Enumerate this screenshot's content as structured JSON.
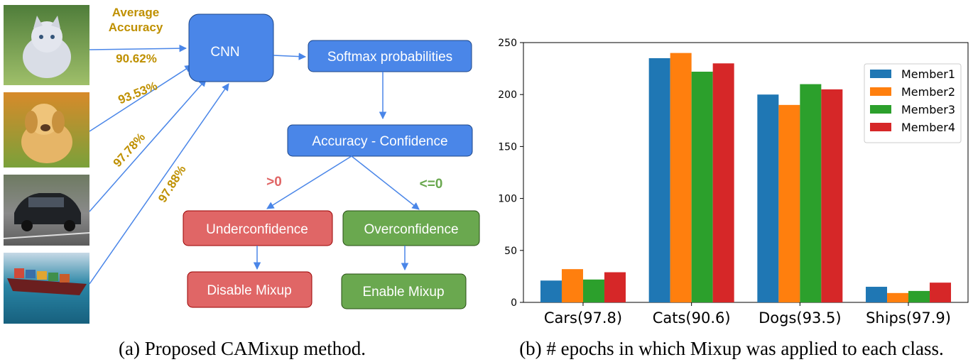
{
  "diagram": {
    "average_accuracy_label": "Average\nAccuracy",
    "images": [
      {
        "name": "kitten",
        "accuracy": "90.62%"
      },
      {
        "name": "puppy",
        "accuracy": "93.53%"
      },
      {
        "name": "car",
        "accuracy": "97.78%"
      },
      {
        "name": "ship",
        "accuracy": "97.88%"
      }
    ],
    "nodes": {
      "cnn": "CNN",
      "softmax": "Softmax probabilities",
      "acc_conf": "Accuracy - Confidence",
      "under": "Underconfidence",
      "over": "Overconfidence",
      "disable": "Disable Mixup",
      "enable": "Enable Mixup"
    },
    "branch_pos": ">0",
    "branch_neg": "<=0",
    "caption": "(a) Proposed CAMixup method.",
    "colors": {
      "blue": "#4a86e8",
      "red": "#e06666",
      "green": "#6aa84f",
      "gold": "#bf9000"
    }
  },
  "chart_data": {
    "type": "bar",
    "categories": [
      "Cars(97.8)",
      "Cats(90.6)",
      "Dogs(93.5)",
      "Ships(97.9)"
    ],
    "series": [
      {
        "name": "Member1",
        "color": "#1f77b4",
        "values": [
          21,
          235,
          200,
          15
        ]
      },
      {
        "name": "Member2",
        "color": "#ff7f0e",
        "values": [
          32,
          240,
          190,
          9
        ]
      },
      {
        "name": "Member3",
        "color": "#2ca02c",
        "values": [
          22,
          222,
          210,
          11
        ]
      },
      {
        "name": "Member4",
        "color": "#d62728",
        "values": [
          29,
          230,
          205,
          19
        ]
      }
    ],
    "ylim": [
      0,
      250
    ],
    "yticks": [
      0,
      50,
      100,
      150,
      200,
      250
    ],
    "grid": false,
    "legend": "top-right",
    "caption": "(b) # epochs in which Mixup was applied to each class."
  }
}
